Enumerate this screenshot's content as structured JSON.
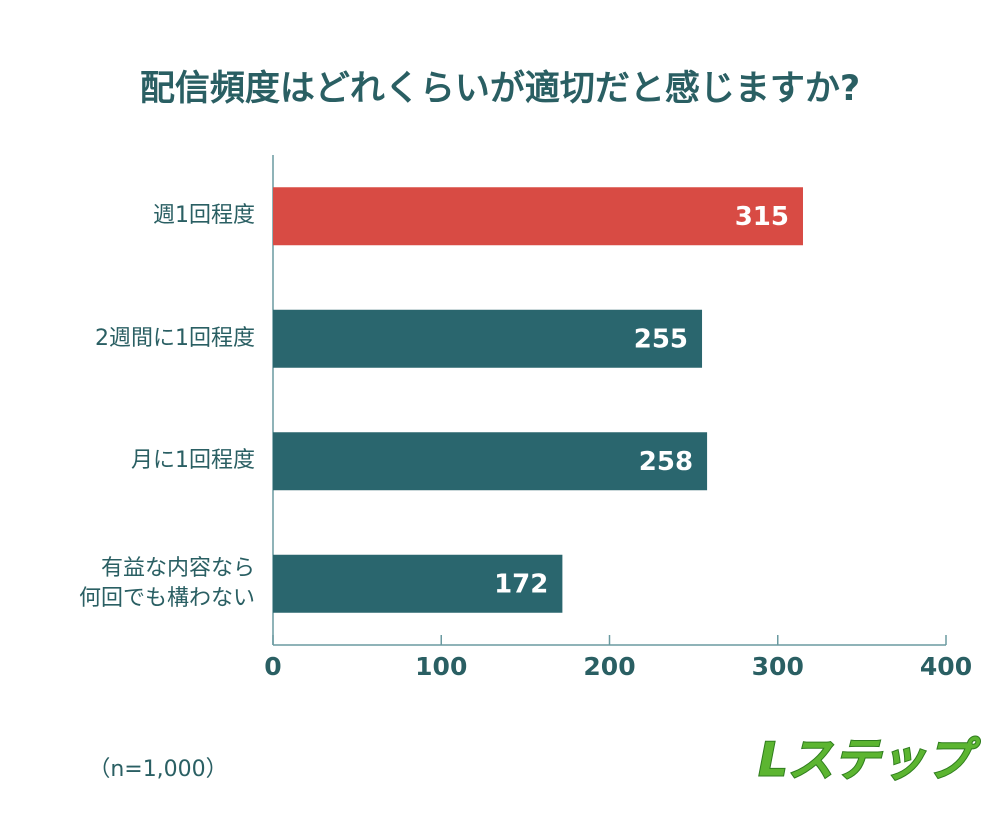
{
  "chart_data": {
    "type": "bar",
    "orientation": "horizontal",
    "title": "配信頻度はどれくらいが適切だと感じますか?",
    "categories": [
      "週1回程度",
      "2週間に1回程度",
      "月に1回程度",
      "有益な内容なら\n何回でも構わない"
    ],
    "values": [
      315,
      255,
      258,
      172
    ],
    "colors": [
      "#d84b44",
      "#2a666e",
      "#2a666e",
      "#2a666e"
    ],
    "xlim": [
      0,
      400
    ],
    "xticks": [
      0,
      100,
      200,
      300,
      400
    ],
    "annotation": "（n=1,000）",
    "logo": "Lステップ"
  }
}
